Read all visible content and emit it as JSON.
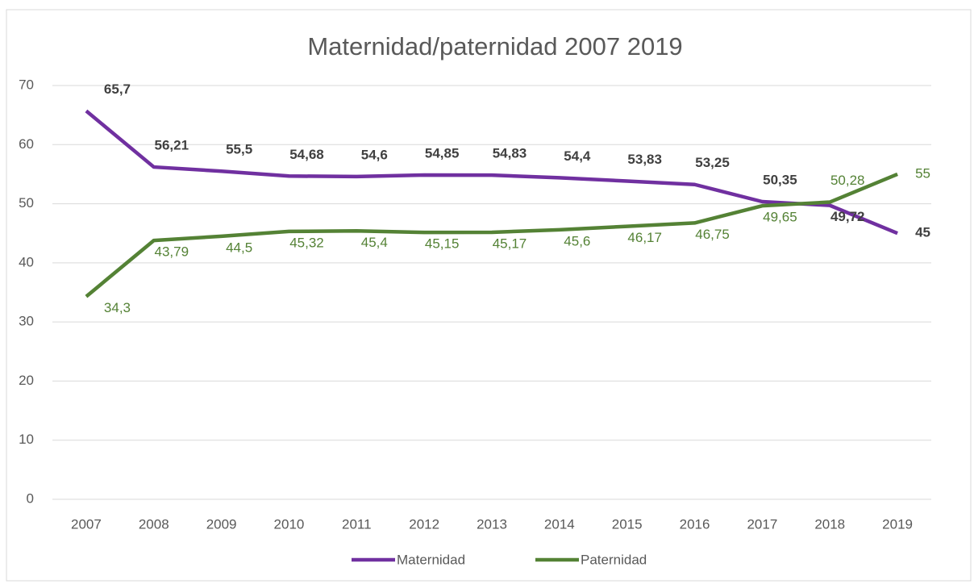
{
  "chart_data": {
    "type": "line",
    "title": "Maternidad/paternidad 2007 2019",
    "categories": [
      "2007",
      "2008",
      "2009",
      "2010",
      "2011",
      "2012",
      "2013",
      "2014",
      "2015",
      "2016",
      "2017",
      "2018",
      "2019"
    ],
    "series": [
      {
        "name": "Maternidad",
        "color": "#7030a0",
        "values": [
          65.7,
          56.21,
          55.5,
          54.68,
          54.6,
          54.85,
          54.83,
          54.4,
          53.83,
          53.25,
          50.35,
          49.72,
          45
        ],
        "value_labels": [
          "65,7",
          "56,21",
          "55,5",
          "54,68",
          "54,6",
          "54,85",
          "54,83",
          "54,4",
          "53,83",
          "53,25",
          "50,35",
          "49,72",
          "45"
        ]
      },
      {
        "name": "Paternidad",
        "color": "#548235",
        "values": [
          34.3,
          43.79,
          44.5,
          45.32,
          45.4,
          45.15,
          45.17,
          45.6,
          46.17,
          46.75,
          49.65,
          50.28,
          55
        ],
        "value_labels": [
          "34,3",
          "43,79",
          "44,5",
          "45,32",
          "45,4",
          "45,15",
          "45,17",
          "45,6",
          "46,17",
          "46,75",
          "49,65",
          "50,28",
          "55"
        ]
      }
    ],
    "ylim": [
      0,
      70
    ],
    "yticks": [
      0,
      10,
      20,
      30,
      40,
      50,
      60,
      70
    ],
    "grid": true,
    "legend": "bottom"
  }
}
